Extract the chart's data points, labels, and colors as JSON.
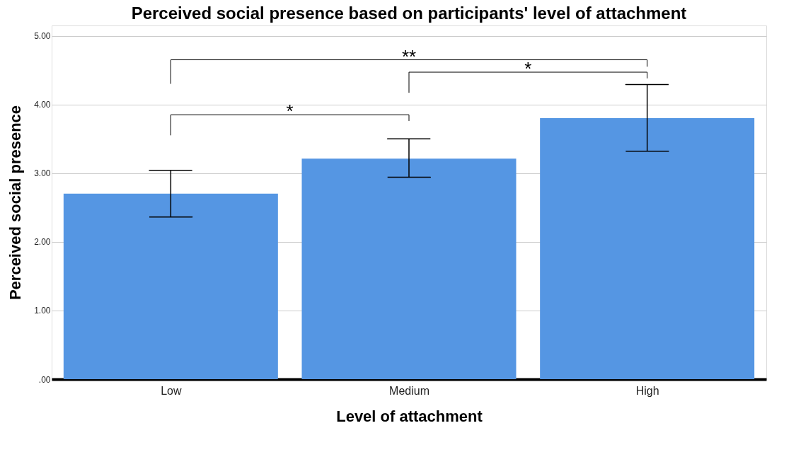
{
  "chart_data": {
    "type": "bar",
    "title": "Perceived social presence based on participants' level of attachment",
    "xlabel": "Level of attachment",
    "ylabel": "Perceived social presence",
    "categories": [
      "Low",
      "Medium",
      "High"
    ],
    "color": "#5596e3",
    "values": [
      2.7,
      3.21,
      3.8
    ],
    "errors": [
      [
        2.36,
        3.04
      ],
      [
        2.94,
        3.5
      ],
      [
        3.32,
        4.29
      ]
    ],
    "ylim": [
      0,
      5.15
    ],
    "yticks": [
      {
        "value": 0,
        "label": ".00"
      },
      {
        "value": 1,
        "label": "1.00"
      },
      {
        "value": 2,
        "label": "2.00"
      },
      {
        "value": 3,
        "label": "3.00"
      },
      {
        "value": 4,
        "label": "4.00"
      },
      {
        "value": 5,
        "label": "5.00"
      }
    ],
    "grid": "y",
    "annotations": [
      "**",
      "*",
      "*"
    ]
  }
}
